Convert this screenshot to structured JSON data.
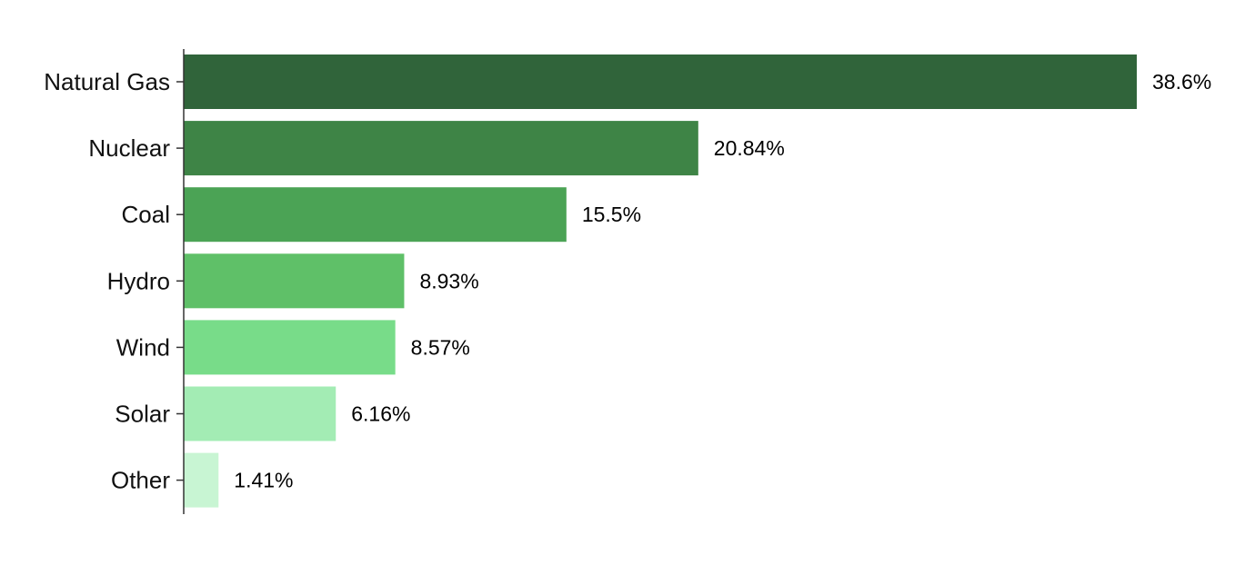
{
  "chart_data": {
    "type": "bar",
    "orientation": "horizontal",
    "title": "",
    "xlabel": "",
    "ylabel": "",
    "categories": [
      "Natural Gas",
      "Nuclear",
      "Coal",
      "Hydro",
      "Wind",
      "Solar",
      "Other"
    ],
    "values": [
      38.6,
      20.84,
      15.5,
      8.93,
      8.57,
      6.16,
      1.41
    ],
    "value_labels": [
      "38.6%",
      "20.84%",
      "15.5%",
      "8.93%",
      "8.57%",
      "6.16%",
      "1.41%"
    ],
    "colors": [
      "#30643a",
      "#3e8446",
      "#4ba355",
      "#5fc068",
      "#78dc89",
      "#a3ecb4",
      "#c8f5d3"
    ],
    "xlim": [
      0,
      38.6
    ],
    "grid": false,
    "legend": "none"
  }
}
